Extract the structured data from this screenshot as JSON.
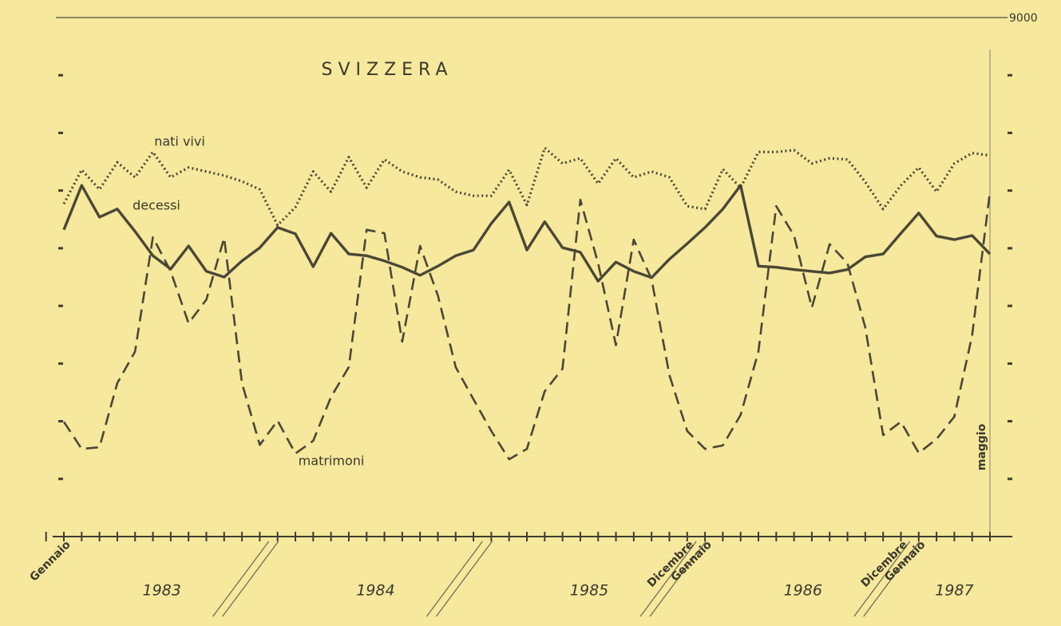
{
  "chart_data": {
    "type": "line",
    "title": "SVIZZERA",
    "categories": [
      "Gennaio",
      null,
      null,
      null,
      null,
      null,
      null,
      null,
      null,
      null,
      null,
      null,
      null,
      null,
      null,
      null,
      null,
      null,
      null,
      null,
      null,
      null,
      null,
      null,
      null,
      null,
      null,
      null,
      null,
      null,
      null,
      null,
      null,
      null,
      null,
      "Dicembre",
      "Gennaio",
      null,
      null,
      null,
      null,
      null,
      null,
      null,
      null,
      null,
      null,
      "Dicembre",
      "Gennaio",
      null,
      null,
      null,
      "maggio"
    ],
    "years": [
      "1983",
      "1984",
      "1985",
      "1986",
      "1987"
    ],
    "series": [
      {
        "name": "nati vivi",
        "color": "#4a4736",
        "style": "dotted",
        "values": [
          5770,
          6360,
          6020,
          6490,
          6230,
          6670,
          6230,
          6400,
          6330,
          6260,
          6160,
          6020,
          5400,
          5710,
          6330,
          5980,
          6580,
          6050,
          6540,
          6330,
          6230,
          6190,
          5980,
          5910,
          5910,
          6360,
          5750,
          6740,
          6470,
          6560,
          6120,
          6560,
          6230,
          6330,
          6230,
          5730,
          5680,
          6370,
          6050,
          6670,
          6670,
          6700,
          6470,
          6560,
          6540,
          6150,
          5680,
          6090,
          6400,
          5980,
          6470,
          6650,
          6610
        ]
      },
      {
        "name": "decessi",
        "color": "#4a4736",
        "style": "solid",
        "values": [
          5320,
          6090,
          5540,
          5680,
          5290,
          4870,
          4640,
          5040,
          4600,
          4500,
          4780,
          5010,
          5360,
          5250,
          4680,
          5260,
          4900,
          4870,
          4780,
          4670,
          4530,
          4690,
          4870,
          4970,
          5430,
          5800,
          4970,
          5460,
          5010,
          4930,
          4430,
          4760,
          4600,
          4490,
          4810,
          5080,
          5360,
          5680,
          6090,
          4690,
          4670,
          4630,
          4600,
          4570,
          4630,
          4850,
          4900,
          5260,
          5610,
          5210,
          5150,
          5220,
          4900
        ]
      },
      {
        "name": "matrimoni",
        "color": "#4a4736",
        "style": "dashed",
        "values": [
          1990,
          1520,
          1550,
          2660,
          3210,
          5190,
          4600,
          3700,
          4110,
          5180,
          2660,
          1590,
          2010,
          1440,
          1660,
          2420,
          2940,
          5320,
          5260,
          3380,
          5040,
          4180,
          2940,
          2380,
          1830,
          1340,
          1520,
          2520,
          2910,
          5840,
          4740,
          3320,
          5150,
          4460,
          2800,
          1830,
          1520,
          1580,
          2110,
          3210,
          5730,
          5220,
          3970,
          5070,
          4740,
          3630,
          1760,
          1990,
          1450,
          1690,
          2080,
          3490,
          5980
        ]
      }
    ],
    "ylim": [
      0,
      9000
    ],
    "yticks": [
      9000
    ],
    "minor_yticks": [
      1000,
      2000,
      3000,
      4000,
      5000,
      6000,
      7000,
      8000
    ]
  }
}
